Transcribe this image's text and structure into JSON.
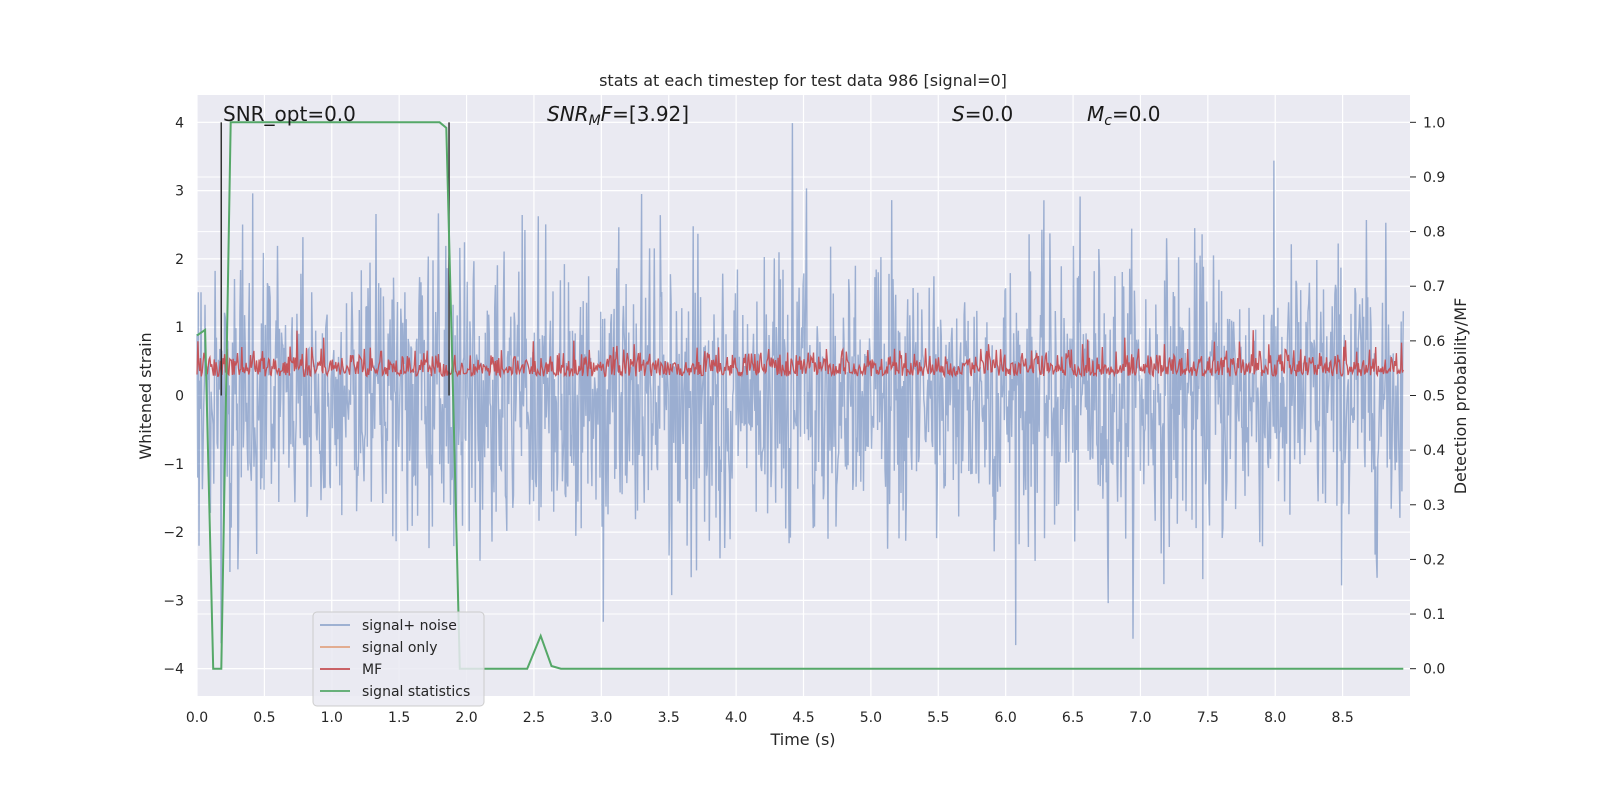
{
  "chart_data": {
    "type": "line",
    "title": "stats at each timestep for test data 986 [signal=0]",
    "xlabel": "Time (s)",
    "ylabel_left": "Whitened strain",
    "ylabel_right": "Detection probability/MF",
    "xlim": [
      0.0,
      9.0
    ],
    "ylim_left": [
      -4.4,
      4.4
    ],
    "ylim_right": [
      -0.05,
      1.05
    ],
    "x_ticks": [
      0.0,
      0.5,
      1.0,
      1.5,
      2.0,
      2.5,
      3.0,
      3.5,
      4.0,
      4.5,
      5.0,
      5.5,
      6.0,
      6.5,
      7.0,
      7.5,
      8.0,
      8.5
    ],
    "x_tick_labels": [
      "0.0",
      "0.5",
      "1.0",
      "1.5",
      "2.0",
      "2.5",
      "3.0",
      "3.5",
      "4.0",
      "4.5",
      "5.0",
      "5.5",
      "6.0",
      "6.5",
      "7.0",
      "7.5",
      "8.0",
      "8.5"
    ],
    "y_left_ticks": [
      -4,
      -3,
      -2,
      -1,
      0,
      1,
      2,
      3,
      4
    ],
    "y_left_tick_labels": [
      "−4",
      "−3",
      "−2",
      "−1",
      "0",
      "1",
      "2",
      "3",
      "4"
    ],
    "y_right_ticks": [
      0.0,
      0.1,
      0.2,
      0.3,
      0.4,
      0.5,
      0.6,
      0.7,
      0.8,
      0.9,
      1.0
    ],
    "y_right_tick_labels": [
      "0.0",
      "0.1",
      "0.2",
      "0.3",
      "0.4",
      "0.5",
      "0.6",
      "0.7",
      "0.8",
      "0.9",
      "1.0"
    ],
    "grid": true,
    "legend_placement": "lower-left",
    "annotations": {
      "snr_opt": "SNR_opt=0.0",
      "snr_mf": "=[3.92]",
      "snr_mf_symbol": "SNR",
      "snr_mf_sub": "M",
      "snr_mf_tail": "F",
      "s": "=0.0",
      "s_symbol": "S",
      "mc": "=0.0",
      "mc_symbol": "M",
      "mc_sub": "c"
    },
    "series": [
      {
        "name": "signal+ noise",
        "color": "#4c72b0",
        "axis": "left",
        "description_values": {
          "amplitude_range": [
            -4.0,
            4.0
          ],
          "typical_range": [
            -1.6,
            1.6
          ]
        }
      },
      {
        "name": "signal only",
        "color": "#dd8452",
        "axis": "left",
        "values": []
      },
      {
        "name": "MF",
        "color": "#c44e52",
        "axis": "left",
        "description_values": {
          "range": [
            0.0,
            1.0
          ]
        }
      },
      {
        "name": "signal statistics",
        "color": "#55a868",
        "axis": "right",
        "x": [
          0.0,
          0.06,
          0.12,
          0.18,
          0.25,
          0.3,
          1.5,
          1.8,
          1.85,
          1.9,
          1.95,
          2.0,
          2.45,
          2.55,
          2.63,
          2.7,
          8.95
        ],
        "y": [
          0.61,
          0.62,
          0.0,
          0.0,
          1.0,
          1.0,
          1.0,
          1.0,
          0.99,
          0.5,
          0.0,
          0.0,
          0.0,
          0.06,
          0.005,
          0.0,
          0.0
        ]
      }
    ],
    "vertical_lines": [
      0.18,
      1.87
    ],
    "vertical_line_color": "#333333"
  }
}
